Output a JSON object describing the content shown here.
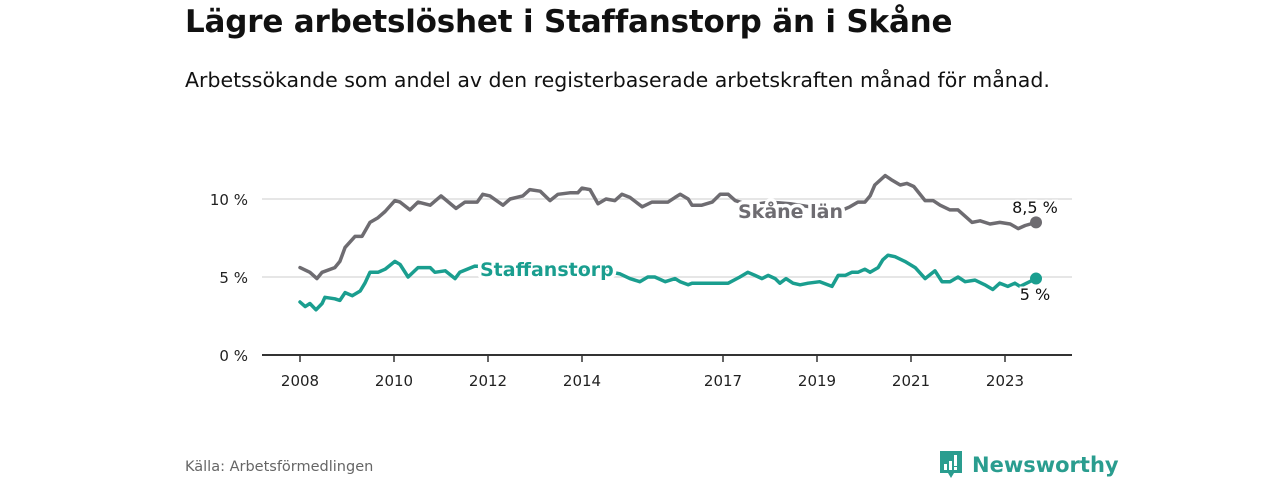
{
  "title": "Lägre arbetslöshet i Staffanstorp än i Skåne",
  "subtitle": "Arbetssökande som andel av den registerbaserade arbetskraften månad för månad.",
  "source": "Källa: Arbetsförmedlingen",
  "brand": "Newsworthy",
  "colors": {
    "skane": "#6e6c71",
    "staffanstorp": "#1a9e8f",
    "grid": "#dddddd",
    "axis": "#333333"
  },
  "chart_data": {
    "type": "line",
    "title": "Lägre arbetslöshet i Staffanstorp än i Skåne",
    "xlabel": "",
    "ylabel": "",
    "xlim": [
      2007.6,
      2024.4
    ],
    "ylim": [
      0,
      12.5
    ],
    "x_ticks": [
      {
        "v": 2008,
        "label": "2008"
      },
      {
        "v": 2010,
        "label": "2010"
      },
      {
        "v": 2012,
        "label": "2012"
      },
      {
        "v": 2014,
        "label": "2014"
      },
      {
        "v": 2017,
        "label": "2017"
      },
      {
        "v": 2019,
        "label": "2019"
      },
      {
        "v": 2021,
        "label": "2021"
      },
      {
        "v": 2023,
        "label": "2023"
      }
    ],
    "y_ticks": [
      {
        "v": 0,
        "label": "0 %"
      },
      {
        "v": 5,
        "label": "5 %"
      },
      {
        "v": 10,
        "label": "10 %"
      }
    ],
    "grid": true,
    "series": [
      {
        "name": "Skåne län",
        "color": "#6e6c71",
        "end_label": "8,5 %",
        "points": [
          [
            2008.0,
            5.6
          ],
          [
            2008.21,
            5.3
          ],
          [
            2008.36,
            4.9
          ],
          [
            2008.47,
            5.3
          ],
          [
            2008.74,
            5.6
          ],
          [
            2008.85,
            6.0
          ],
          [
            2008.96,
            6.9
          ],
          [
            2009.17,
            7.6
          ],
          [
            2009.32,
            7.6
          ],
          [
            2009.49,
            8.5
          ],
          [
            2009.66,
            8.8
          ],
          [
            2009.81,
            9.2
          ],
          [
            2010.02,
            9.9
          ],
          [
            2010.13,
            9.8
          ],
          [
            2010.34,
            9.3
          ],
          [
            2010.51,
            9.8
          ],
          [
            2010.77,
            9.6
          ],
          [
            2011.0,
            10.2
          ],
          [
            2011.32,
            9.4
          ],
          [
            2011.51,
            9.8
          ],
          [
            2011.77,
            9.8
          ],
          [
            2011.89,
            10.3
          ],
          [
            2012.04,
            10.2
          ],
          [
            2012.32,
            9.6
          ],
          [
            2012.47,
            10.0
          ],
          [
            2012.74,
            10.2
          ],
          [
            2012.89,
            10.6
          ],
          [
            2013.11,
            10.5
          ],
          [
            2013.32,
            9.9
          ],
          [
            2013.49,
            10.3
          ],
          [
            2013.74,
            10.4
          ],
          [
            2013.91,
            10.4
          ],
          [
            2014.0,
            10.7
          ],
          [
            2014.17,
            10.6
          ],
          [
            2014.34,
            9.7
          ],
          [
            2014.51,
            10.0
          ],
          [
            2014.7,
            9.9
          ],
          [
            2014.85,
            10.3
          ],
          [
            2015.02,
            10.1
          ],
          [
            2015.28,
            9.5
          ],
          [
            2015.49,
            9.8
          ],
          [
            2015.83,
            9.8
          ],
          [
            2015.98,
            10.1
          ],
          [
            2016.09,
            10.3
          ],
          [
            2016.26,
            10.0
          ],
          [
            2016.34,
            9.6
          ],
          [
            2016.55,
            9.6
          ],
          [
            2016.77,
            9.8
          ],
          [
            2016.94,
            10.3
          ],
          [
            2017.11,
            10.3
          ],
          [
            2017.26,
            9.9
          ],
          [
            2017.57,
            9.6
          ],
          [
            2018.0,
            9.8
          ],
          [
            2018.43,
            9.7
          ],
          [
            2018.85,
            9.5
          ],
          [
            2019.28,
            9.3
          ],
          [
            2019.55,
            9.3
          ],
          [
            2019.7,
            9.5
          ],
          [
            2019.87,
            9.8
          ],
          [
            2020.02,
            9.8
          ],
          [
            2020.13,
            10.2
          ],
          [
            2020.23,
            10.9
          ],
          [
            2020.45,
            11.5
          ],
          [
            2020.6,
            11.2
          ],
          [
            2020.77,
            10.9
          ],
          [
            2020.91,
            11.0
          ],
          [
            2021.06,
            10.8
          ],
          [
            2021.3,
            9.9
          ],
          [
            2021.47,
            9.9
          ],
          [
            2021.62,
            9.6
          ],
          [
            2021.83,
            9.3
          ],
          [
            2022.0,
            9.3
          ],
          [
            2022.15,
            8.9
          ],
          [
            2022.3,
            8.5
          ],
          [
            2022.47,
            8.6
          ],
          [
            2022.68,
            8.4
          ],
          [
            2022.89,
            8.5
          ],
          [
            2023.11,
            8.4
          ],
          [
            2023.28,
            8.1
          ],
          [
            2023.43,
            8.3
          ],
          [
            2023.66,
            8.5
          ]
        ]
      },
      {
        "name": "Staffanstorp",
        "color": "#1a9e8f",
        "end_label": "5 %",
        "points": [
          [
            2008.0,
            3.4
          ],
          [
            2008.11,
            3.1
          ],
          [
            2008.21,
            3.3
          ],
          [
            2008.34,
            2.9
          ],
          [
            2008.47,
            3.3
          ],
          [
            2008.53,
            3.7
          ],
          [
            2008.74,
            3.6
          ],
          [
            2008.85,
            3.5
          ],
          [
            2008.96,
            4.0
          ],
          [
            2009.11,
            3.8
          ],
          [
            2009.28,
            4.1
          ],
          [
            2009.38,
            4.6
          ],
          [
            2009.49,
            5.3
          ],
          [
            2009.66,
            5.3
          ],
          [
            2009.81,
            5.5
          ],
          [
            2010.02,
            6.0
          ],
          [
            2010.13,
            5.8
          ],
          [
            2010.3,
            5.0
          ],
          [
            2010.51,
            5.6
          ],
          [
            2010.77,
            5.6
          ],
          [
            2010.87,
            5.3
          ],
          [
            2011.09,
            5.4
          ],
          [
            2011.3,
            4.9
          ],
          [
            2011.4,
            5.3
          ],
          [
            2011.72,
            5.7
          ],
          [
            2012.26,
            5.6
          ],
          [
            2013.11,
            5.4
          ],
          [
            2013.96,
            5.3
          ],
          [
            2014.64,
            5.3
          ],
          [
            2014.81,
            5.2
          ],
          [
            2015.02,
            4.9
          ],
          [
            2015.23,
            4.7
          ],
          [
            2015.4,
            5.0
          ],
          [
            2015.55,
            5.0
          ],
          [
            2015.77,
            4.7
          ],
          [
            2015.98,
            4.9
          ],
          [
            2016.09,
            4.7
          ],
          [
            2016.26,
            4.5
          ],
          [
            2016.34,
            4.6
          ],
          [
            2016.77,
            4.6
          ],
          [
            2016.94,
            4.6
          ],
          [
            2017.11,
            4.6
          ],
          [
            2017.36,
            5.0
          ],
          [
            2017.53,
            5.3
          ],
          [
            2017.68,
            5.1
          ],
          [
            2017.83,
            4.9
          ],
          [
            2017.96,
            5.1
          ],
          [
            2018.11,
            4.9
          ],
          [
            2018.21,
            4.6
          ],
          [
            2018.34,
            4.9
          ],
          [
            2018.49,
            4.6
          ],
          [
            2018.64,
            4.5
          ],
          [
            2018.81,
            4.6
          ],
          [
            2019.06,
            4.7
          ],
          [
            2019.32,
            4.4
          ],
          [
            2019.45,
            5.1
          ],
          [
            2019.6,
            5.1
          ],
          [
            2019.74,
            5.3
          ],
          [
            2019.87,
            5.3
          ],
          [
            2020.02,
            5.5
          ],
          [
            2020.13,
            5.3
          ],
          [
            2020.3,
            5.6
          ],
          [
            2020.4,
            6.1
          ],
          [
            2020.51,
            6.4
          ],
          [
            2020.66,
            6.3
          ],
          [
            2020.87,
            6.0
          ],
          [
            2021.09,
            5.6
          ],
          [
            2021.3,
            4.9
          ],
          [
            2021.51,
            5.4
          ],
          [
            2021.66,
            4.7
          ],
          [
            2021.83,
            4.7
          ],
          [
            2022.0,
            5.0
          ],
          [
            2022.15,
            4.7
          ],
          [
            2022.36,
            4.8
          ],
          [
            2022.57,
            4.5
          ],
          [
            2022.74,
            4.2
          ],
          [
            2022.89,
            4.6
          ],
          [
            2023.06,
            4.4
          ],
          [
            2023.21,
            4.6
          ],
          [
            2023.32,
            4.4
          ],
          [
            2023.66,
            4.9
          ]
        ]
      }
    ]
  }
}
